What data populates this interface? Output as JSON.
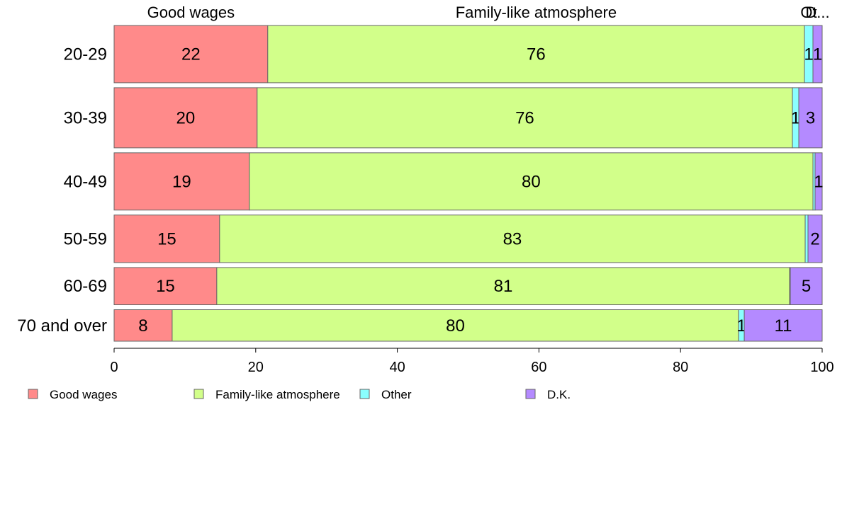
{
  "chart_data": {
    "type": "bar",
    "orientation": "horizontal",
    "stacked": true,
    "categories": [
      "20-29",
      "30-39",
      "40-49",
      "50-59",
      "60-69",
      "70 and over"
    ],
    "category_weights": [
      1.0,
      1.05,
      1.0,
      0.83,
      0.65,
      0.55
    ],
    "series": [
      {
        "name": "Good wages",
        "color": "#ff8a8a",
        "values": [
          21.7,
          20.2,
          19.1,
          14.9,
          14.5,
          8.2
        ],
        "labels": [
          "22",
          "20",
          "19",
          "15",
          "15",
          "8"
        ]
      },
      {
        "name": "Family-like atmosphere",
        "color": "#d2ff8a",
        "values": [
          75.8,
          75.6,
          79.6,
          82.7,
          80.9,
          80.0
        ],
        "labels": [
          "76",
          "76",
          "80",
          "83",
          "81",
          "80"
        ]
      },
      {
        "name": "Other",
        "color": "#8affff",
        "values": [
          1.2,
          0.9,
          0.3,
          0.4,
          0.1,
          0.8
        ],
        "labels": [
          "1",
          "1",
          "",
          "",
          "",
          "1"
        ]
      },
      {
        "name": "D.K.",
        "color": "#b48aff",
        "values": [
          1.3,
          3.3,
          1.0,
          2.0,
          4.5,
          11.0
        ],
        "labels": [
          "1",
          "3",
          "1",
          "2",
          "5",
          "11"
        ]
      }
    ],
    "top_labels": [
      "Good wages",
      "Family-like atmosphere",
      "Ot",
      "D..."
    ],
    "xlim": [
      0,
      100
    ],
    "xticks": [
      0,
      20,
      40,
      60,
      80,
      100
    ],
    "xtick_labels": [
      "0",
      "20",
      "40",
      "60",
      "80",
      "100"
    ],
    "grid": false,
    "legend": {
      "position": "bottom-left",
      "items": [
        "Good wages",
        "Family-like atmosphere",
        "Other",
        "D.K."
      ]
    },
    "title": "",
    "xlabel": "",
    "ylabel": ""
  }
}
